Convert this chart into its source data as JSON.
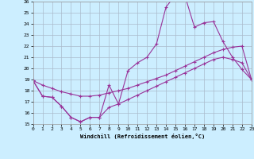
{
  "xlabel": "Windchill (Refroidissement éolien,°C)",
  "xlim": [
    0,
    23
  ],
  "ylim": [
    15,
    26
  ],
  "xticks": [
    0,
    1,
    2,
    3,
    4,
    5,
    6,
    7,
    8,
    9,
    10,
    11,
    12,
    13,
    14,
    15,
    16,
    17,
    18,
    19,
    20,
    21,
    22,
    23
  ],
  "yticks": [
    15,
    16,
    17,
    18,
    19,
    20,
    21,
    22,
    23,
    24,
    25,
    26
  ],
  "bg_color": "#cceeff",
  "grid_color": "#aabbcc",
  "line_color": "#993399",
  "line1_x": [
    0,
    1,
    2,
    3,
    4,
    5,
    6,
    7,
    8,
    9,
    10,
    11,
    12,
    13,
    14,
    15,
    16,
    17,
    18,
    19,
    20,
    21,
    22,
    23
  ],
  "line1_y": [
    18.9,
    17.5,
    17.4,
    16.6,
    15.6,
    15.2,
    15.6,
    15.6,
    18.5,
    16.8,
    19.8,
    20.5,
    21.0,
    22.2,
    25.5,
    26.6,
    26.5,
    23.7,
    24.1,
    24.2,
    22.4,
    21.0,
    19.9,
    19.0
  ],
  "line2_x": [
    0,
    1,
    2,
    3,
    4,
    5,
    6,
    7,
    8,
    9,
    10,
    11,
    12,
    13,
    14,
    15,
    16,
    17,
    18,
    19,
    20,
    21,
    22,
    23
  ],
  "line2_y": [
    18.9,
    18.5,
    18.2,
    17.9,
    17.7,
    17.5,
    17.5,
    17.6,
    17.8,
    18.0,
    18.2,
    18.5,
    18.8,
    19.1,
    19.4,
    19.8,
    20.2,
    20.6,
    21.0,
    21.4,
    21.7,
    21.9,
    22.0,
    19.0
  ],
  "line3_x": [
    0,
    1,
    2,
    3,
    4,
    5,
    6,
    7,
    8,
    9,
    10,
    11,
    12,
    13,
    14,
    15,
    16,
    17,
    18,
    19,
    20,
    21,
    22,
    23
  ],
  "line3_y": [
    18.9,
    17.5,
    17.4,
    16.6,
    15.6,
    15.2,
    15.6,
    15.6,
    16.5,
    16.8,
    17.2,
    17.6,
    18.0,
    18.4,
    18.8,
    19.2,
    19.6,
    20.0,
    20.4,
    20.8,
    21.0,
    20.8,
    20.5,
    19.0
  ]
}
